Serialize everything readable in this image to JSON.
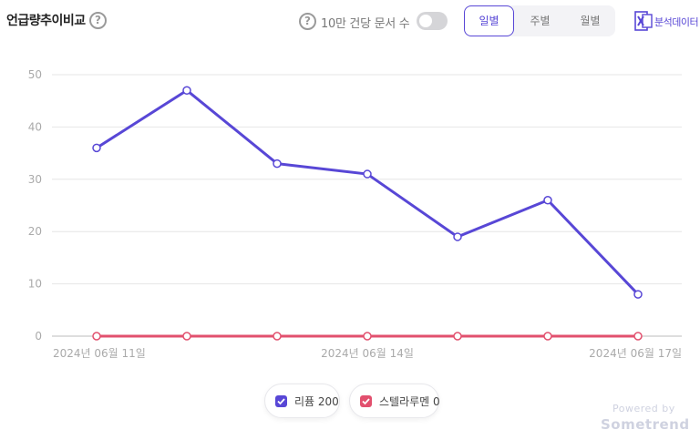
{
  "header": {
    "title": "언급량추이비교",
    "help_glyph": "?",
    "norm_label": "10만 건당 문서 수",
    "norm_toggle_on": false
  },
  "period_tabs": [
    {
      "label": "일별",
      "active": true
    },
    {
      "label": "주별",
      "active": false
    },
    {
      "label": "월별",
      "active": false
    }
  ],
  "export": {
    "label": "분석데이터",
    "icon": "excel-icon"
  },
  "legend": [
    {
      "label": "리퓸 200",
      "color": "#5847d6",
      "checked": true
    },
    {
      "label": "스텔라루멘 0",
      "color": "#e2506e",
      "checked": true
    }
  ],
  "footer": {
    "powered": "Powered by",
    "brand": "Sometrend"
  },
  "chart_data": {
    "type": "line",
    "x": [
      "2024년 06월 11일",
      "2024년 06월 12일",
      "2024년 06월 13일",
      "2024년 06월 14일",
      "2024년 06월 15일",
      "2024년 06월 16일",
      "2024년 06월 17일"
    ],
    "x_tick_labels": [
      "2024년 06월 11일",
      "2024년 06월 14일",
      "2024년 06월 17일"
    ],
    "series": [
      {
        "name": "리퓸",
        "color": "#5847d6",
        "values": [
          36,
          47,
          33,
          31,
          19,
          26,
          8
        ]
      },
      {
        "name": "스텔라루멘",
        "color": "#e2506e",
        "values": [
          0,
          0,
          0,
          0,
          0,
          0,
          0
        ]
      }
    ],
    "ylim": [
      0,
      50
    ],
    "y_ticks": [
      0,
      10,
      20,
      30,
      40,
      50
    ],
    "grid": true,
    "legend_position": "bottom-center"
  }
}
